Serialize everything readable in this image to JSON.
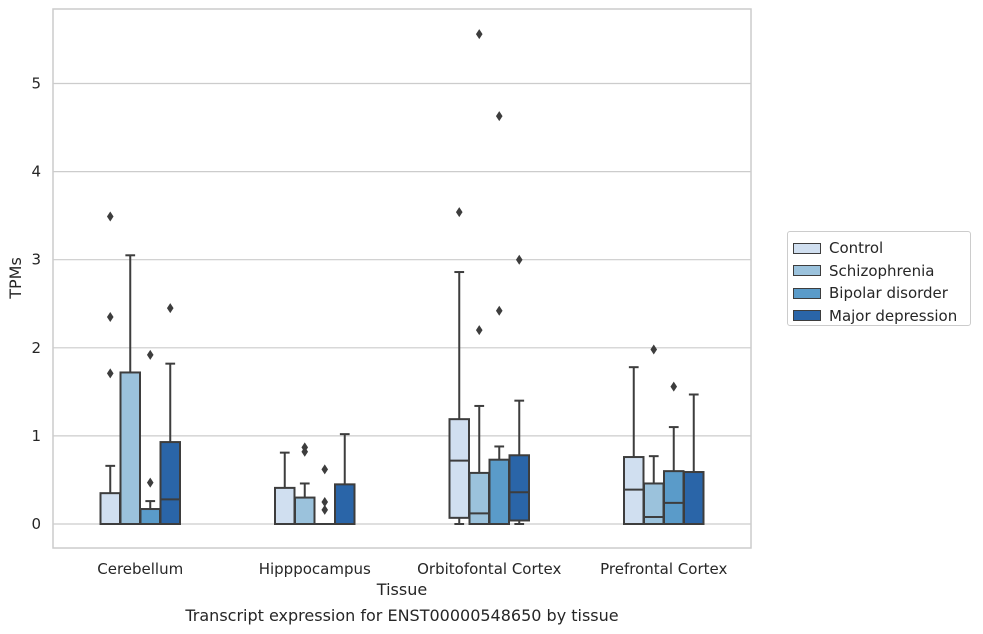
{
  "caption": "Transcript expression for ENST00000548650 by tissue",
  "chart_data": {
    "type": "boxplot",
    "xlabel": "Tissue",
    "ylabel": "TPMs",
    "ylim": [
      -0.27,
      5.85
    ],
    "yticks": [
      0,
      1,
      2,
      3,
      4,
      5
    ],
    "grid": "horizontal",
    "legend_position": "right",
    "categories": [
      "Cerebellum",
      "Hipppocampus",
      "Orbitofontal Cortex",
      "Prefrontal Cortex"
    ],
    "series": [
      {
        "name": "Control",
        "color": "#d0dff0",
        "boxes": [
          {
            "whislo": 0.0,
            "q1": 0.0,
            "med": 0.0,
            "q3": 0.35,
            "whishi": 0.66,
            "fliers": [
              1.71,
              2.35,
              3.49
            ]
          },
          {
            "whislo": 0.0,
            "q1": 0.0,
            "med": 0.0,
            "q3": 0.41,
            "whishi": 0.81,
            "fliers": []
          },
          {
            "whislo": 0.0,
            "q1": 0.07,
            "med": 0.72,
            "q3": 1.19,
            "whishi": 2.86,
            "fliers": [
              3.54
            ]
          },
          {
            "whislo": 0.0,
            "q1": 0.0,
            "med": 0.39,
            "q3": 0.76,
            "whishi": 1.78,
            "fliers": []
          }
        ]
      },
      {
        "name": "Schizophrenia",
        "color": "#9bc2dc",
        "boxes": [
          {
            "whislo": 0.0,
            "q1": 0.0,
            "med": 0.0,
            "q3": 1.72,
            "whishi": 3.05,
            "fliers": []
          },
          {
            "whislo": 0.0,
            "q1": 0.0,
            "med": 0.0,
            "q3": 0.3,
            "whishi": 0.46,
            "fliers": [
              0.82,
              0.87
            ]
          },
          {
            "whislo": 0.0,
            "q1": 0.0,
            "med": 0.12,
            "q3": 0.58,
            "whishi": 1.34,
            "fliers": [
              2.2,
              5.56
            ]
          },
          {
            "whislo": 0.0,
            "q1": 0.0,
            "med": 0.08,
            "q3": 0.46,
            "whishi": 0.77,
            "fliers": [
              1.98
            ]
          }
        ]
      },
      {
        "name": "Bipolar disorder",
        "color": "#5a9bc9",
        "boxes": [
          {
            "whislo": 0.0,
            "q1": 0.0,
            "med": 0.0,
            "q3": 0.17,
            "whishi": 0.26,
            "fliers": [
              0.47,
              1.92
            ]
          },
          {
            "whislo": 0.0,
            "q1": 0.0,
            "med": 0.0,
            "q3": 0.0,
            "whishi": 0.0,
            "fliers": [
              0.16,
              0.25,
              0.62
            ]
          },
          {
            "whislo": 0.0,
            "q1": 0.0,
            "med": 0.0,
            "q3": 0.73,
            "whishi": 0.88,
            "fliers": [
              2.42,
              4.63
            ]
          },
          {
            "whislo": 0.0,
            "q1": 0.0,
            "med": 0.24,
            "q3": 0.6,
            "whishi": 1.1,
            "fliers": [
              1.56
            ]
          }
        ]
      },
      {
        "name": "Major depression",
        "color": "#2a65a8",
        "boxes": [
          {
            "whislo": 0.0,
            "q1": 0.0,
            "med": 0.28,
            "q3": 0.93,
            "whishi": 1.82,
            "fliers": [
              2.45
            ]
          },
          {
            "whislo": 0.0,
            "q1": 0.0,
            "med": 0.0,
            "q3": 0.45,
            "whishi": 1.02,
            "fliers": []
          },
          {
            "whislo": 0.0,
            "q1": 0.04,
            "med": 0.36,
            "q3": 0.78,
            "whishi": 1.4,
            "fliers": [
              3.0
            ]
          },
          {
            "whislo": 0.0,
            "q1": 0.0,
            "med": 0.0,
            "q3": 0.59,
            "whishi": 1.47,
            "fliers": []
          }
        ]
      }
    ]
  }
}
